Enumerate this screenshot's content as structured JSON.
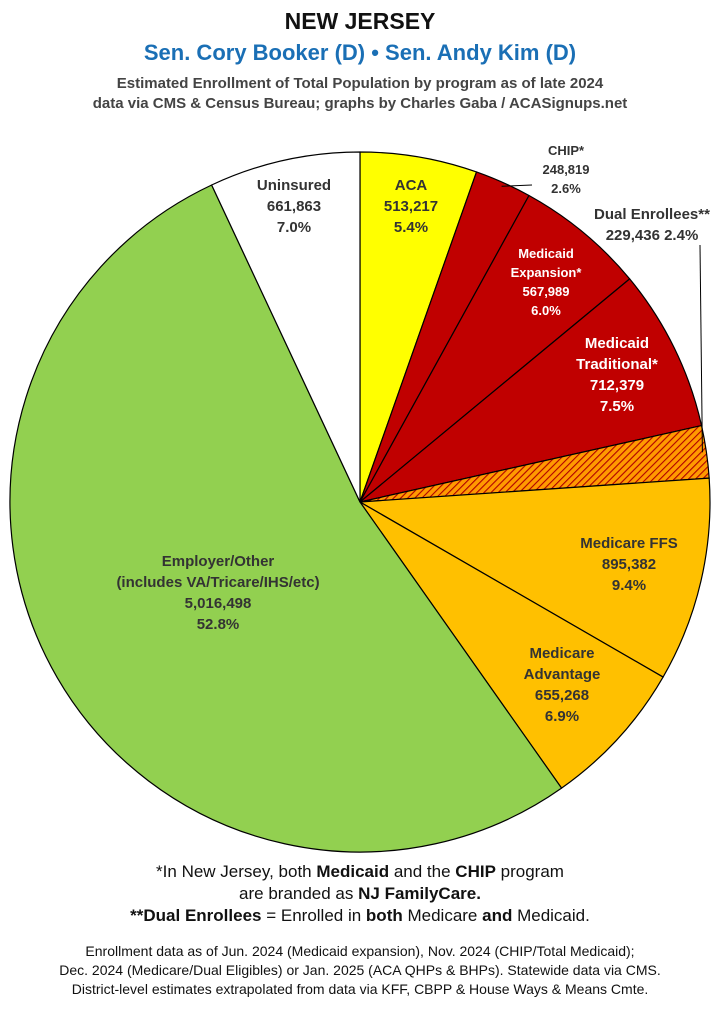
{
  "header": {
    "title": "NEW JERSEY",
    "subtitle": "Sen. Cory Booker (D) • Sen. Andy Kim (D)",
    "desc_line1": "Estimated Enrollment of Total Population by program as of late 2024",
    "desc_line2": "data via CMS & Census Bureau; graphs by Charles Gaba / ACASignups.net"
  },
  "chart_data": {
    "type": "pie",
    "start": "12 o'clock",
    "direction": "clockwise",
    "slices": [
      {
        "label": "ACA",
        "value": 513217,
        "percent": "5.4%",
        "value_text": "513,217",
        "color": "#ffff00",
        "text_color": "#333333"
      },
      {
        "label": "CHIP*",
        "value": 248819,
        "percent": "2.6%",
        "value_text": "248,819",
        "color": "#c00000",
        "text_color": "#333333"
      },
      {
        "label": "Medicaid Expansion*",
        "value": 567989,
        "percent": "6.0%",
        "value_text": "567,989",
        "color": "#c00000",
        "text_color": "#ffffff"
      },
      {
        "label": "Medicaid Traditional*",
        "value": 712379,
        "percent": "7.5%",
        "value_text": "712,379",
        "color": "#c00000",
        "text_color": "#ffffff"
      },
      {
        "label": "Dual Enrollees**",
        "value": 229436,
        "percent": "2.4%",
        "value_text": "229,436",
        "color": "#ff9a00",
        "text_color": "#333333",
        "pattern": "hatch"
      },
      {
        "label": "Medicare FFS",
        "value": 895382,
        "percent": "9.4%",
        "value_text": "895,382",
        "color": "#ffc000",
        "text_color": "#333333"
      },
      {
        "label": "Medicare Advantage",
        "value": 655268,
        "percent": "6.9%",
        "value_text": "655,268",
        "color": "#ffc000",
        "text_color": "#333333"
      },
      {
        "label": "Employer/Other (includes VA/Tricare/IHS/etc)",
        "value": 5016498,
        "percent": "52.8%",
        "value_text": "5,016,498",
        "color": "#92d050",
        "text_color": "#333333"
      },
      {
        "label": "Uninsured",
        "value": 661863,
        "percent": "7.0%",
        "value_text": "661,863",
        "color": "#ffffff",
        "text_color": "#333333"
      }
    ],
    "slice_labels": [
      {
        "lines": [
          "ACA",
          "513,217",
          "5.4%"
        ]
      },
      {
        "lines": [
          "CHIP*",
          "248,819",
          "2.6%"
        ]
      },
      {
        "lines": [
          "Medicaid",
          "Expansion*",
          "567,989",
          "6.0%"
        ]
      },
      {
        "lines": [
          "Medicaid",
          "Traditional*",
          "712,379",
          "7.5%"
        ]
      },
      {
        "lines": [
          "Dual Enrollees**",
          "229,436 2.4%"
        ]
      },
      {
        "lines": [
          "Medicare FFS",
          "895,382",
          "9.4%"
        ]
      },
      {
        "lines": [
          "Medicare",
          "Advantage",
          "655,268",
          "6.9%"
        ]
      },
      {
        "lines": [
          "Employer/Other",
          "(includes VA/Tricare/IHS/etc)",
          "5,016,498",
          "52.8%"
        ]
      },
      {
        "lines": [
          "Uninsured",
          "661,863",
          "7.0%"
        ]
      }
    ]
  },
  "footer": {
    "note1_a": "*In New Jersey, both ",
    "note1_b": "Medicaid",
    "note1_c": " and the ",
    "note1_d": "CHIP",
    "note1_e": " program",
    "note2_a": "are branded as ",
    "note2_b": "NJ FamilyCare.",
    "note3_a": "**Dual Enrollees",
    "note3_b": " = Enrolled in ",
    "note3_c": "both",
    "note3_d": " Medicare ",
    "note3_e": "and",
    "note3_f": " Medicaid.",
    "source1": "Enrollment data as of Jun. 2024 (Medicaid expansion), Nov. 2024 (CHIP/Total Medicaid);",
    "source2": "Dec. 2024 (Medicare/Dual Eligibles) or Jan. 2025 (ACA QHPs & BHPs). Statewide data via CMS.",
    "source3": "District-level estimates extrapolated from data via KFF, CBPP & House Ways & Means Cmte."
  }
}
